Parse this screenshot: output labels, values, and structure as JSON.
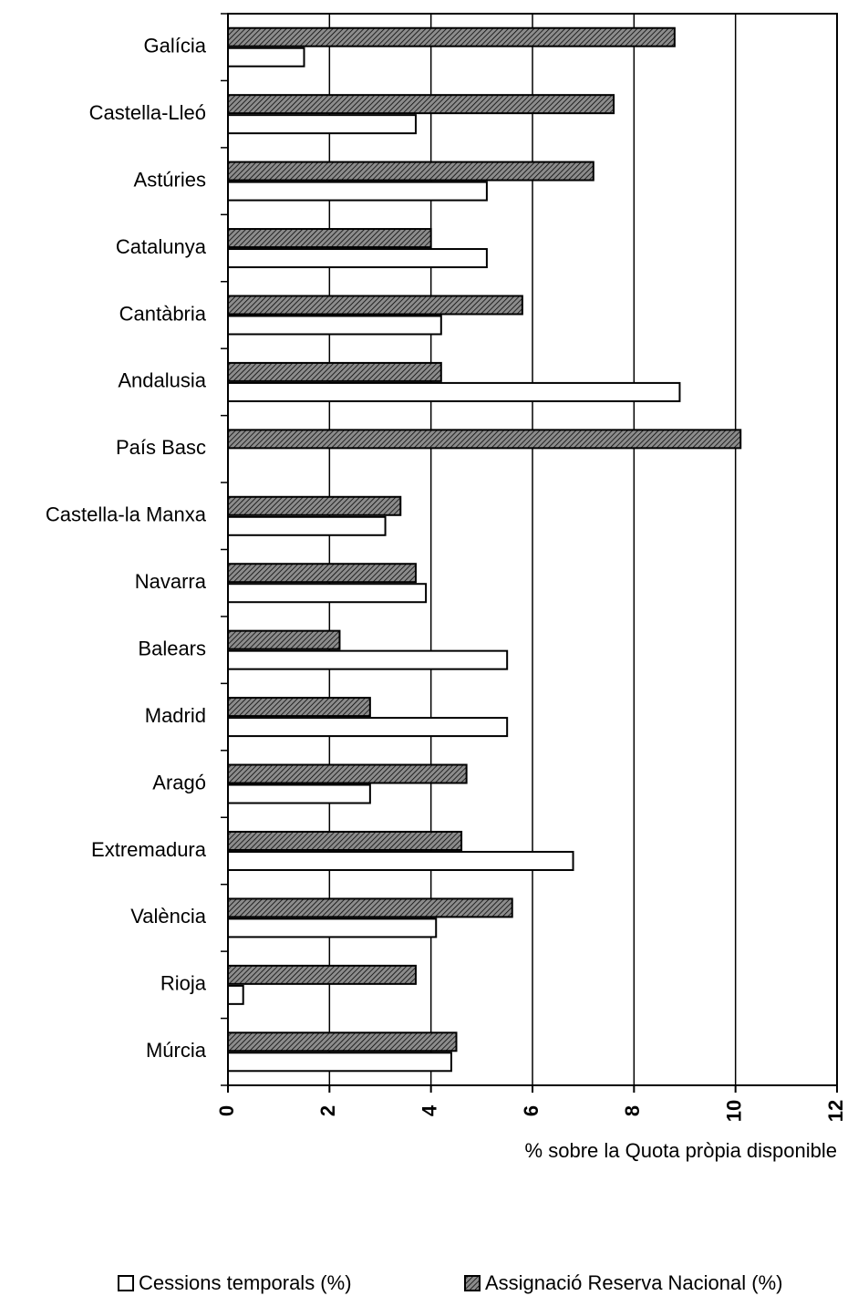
{
  "chart_data": {
    "type": "hbar",
    "categories": [
      "Galícia",
      "Castella-Lleó",
      "Astúries",
      "Catalunya",
      "Cantàbria",
      "Andalusia",
      "País Basc",
      "Castella-la Manxa",
      "Navarra",
      "Balears",
      "Madrid",
      "Aragó",
      "Extremadura",
      "València",
      "Rioja",
      "Múrcia"
    ],
    "series": [
      {
        "name": "Cessions temporals (%)",
        "color": "#ffffff",
        "values": [
          1.5,
          3.7,
          5.1,
          5.1,
          4.2,
          8.9,
          0,
          3.1,
          3.9,
          5.5,
          5.5,
          2.8,
          6.8,
          4.1,
          0.3,
          4.4
        ]
      },
      {
        "name": "Assignació Reserva Nacional (%)",
        "color": "#8c8c8c",
        "values": [
          8.8,
          7.6,
          7.2,
          4.0,
          5.8,
          4.2,
          10.1,
          3.4,
          3.7,
          2.2,
          2.8,
          4.7,
          4.6,
          5.6,
          3.7,
          4.5
        ]
      }
    ],
    "x_label": "% sobre la Quota pròpia disponible",
    "xlim": [
      0,
      12
    ],
    "xticks": [
      0,
      2,
      4,
      6,
      8,
      10,
      12
    ],
    "grid": true
  }
}
